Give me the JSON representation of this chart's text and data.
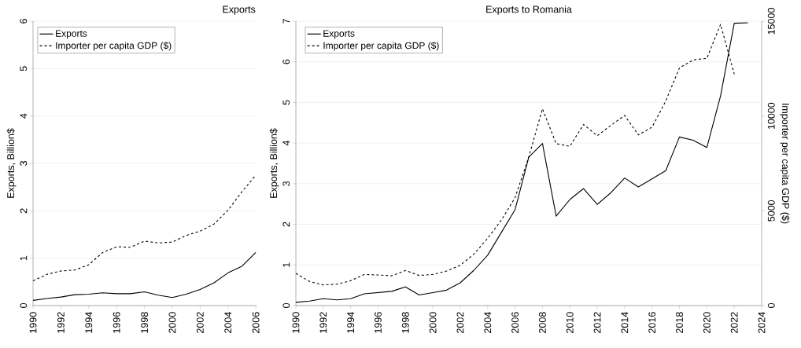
{
  "chart_data": [
    {
      "type": "line",
      "title": "Exports",
      "ylabel": "Exports, Billion$",
      "x": [
        1990,
        1991,
        1992,
        1993,
        1994,
        1995,
        1996,
        1997,
        1998,
        1999,
        2000,
        2001,
        2002,
        2003,
        2004,
        2005,
        2006
      ],
      "series": [
        {
          "name": "Exports",
          "color": "#000000",
          "line_style": "solid",
          "values": [
            0.11,
            0.15,
            0.18,
            0.23,
            0.24,
            0.27,
            0.25,
            0.25,
            0.29,
            0.22,
            0.17,
            0.24,
            0.34,
            0.48,
            0.69,
            0.83,
            1.12
          ]
        },
        {
          "name": "Importer per capita GDP ($)",
          "color": "#000000",
          "line_style": "dashed",
          "values": [
            0.52,
            0.66,
            0.73,
            0.75,
            0.86,
            1.12,
            1.24,
            1.23,
            1.36,
            1.32,
            1.34,
            1.48,
            1.57,
            1.72,
            2.01,
            2.4,
            2.75
          ]
        }
      ],
      "xlim": [
        1990,
        2006.05
      ],
      "ylim": [
        0,
        6
      ],
      "xticks": [
        1990,
        1992,
        1994,
        1996,
        1998,
        2000,
        2002,
        2004,
        2006
      ],
      "yticks": [
        0,
        1,
        2,
        3,
        4,
        5,
        6
      ],
      "grid": "y",
      "legend": "top left"
    },
    {
      "type": "line",
      "title": "Exports to Romania",
      "ylabel": "Exports, Billion$",
      "y2label": "Importer per capita GDP ($)",
      "series": [
        {
          "name": "Exports",
          "color": "#000000",
          "line_style": "solid",
          "x": [
            1990,
            1991,
            1992,
            1993,
            1994,
            1995,
            1996,
            1997,
            1998,
            1999,
            2000,
            2001,
            2002,
            2003,
            2004,
            2005,
            2006,
            2007,
            2008,
            2009,
            2010,
            2011,
            2012,
            2013,
            2014,
            2015,
            2016,
            2017,
            2018,
            2019,
            2020,
            2021,
            2022,
            2023
          ],
          "values": [
            0.08,
            0.11,
            0.17,
            0.14,
            0.17,
            0.29,
            0.32,
            0.35,
            0.46,
            0.26,
            0.32,
            0.38,
            0.56,
            0.87,
            1.24,
            1.8,
            2.36,
            3.65,
            3.99,
            2.2,
            2.61,
            2.88,
            2.49,
            2.78,
            3.14,
            2.92,
            3.12,
            3.32,
            4.15,
            4.07,
            3.89,
            5.16,
            6.95,
            6.96
          ]
        },
        {
          "name": "Importer per capita GDP ($)",
          "color": "#000000",
          "line_style": "dashed",
          "axis": "y2",
          "x": [
            1990,
            1991,
            1992,
            1993,
            1994,
            1995,
            1996,
            1997,
            1998,
            1999,
            2000,
            2001,
            2002,
            2003,
            2004,
            2005,
            2006,
            2007,
            2008,
            2009,
            2010,
            2011,
            2012,
            2013,
            2014,
            2015,
            2016,
            2017,
            2018,
            2019,
            2020,
            2021,
            2022
          ],
          "values": [
            1700,
            1270,
            1090,
            1130,
            1310,
            1640,
            1615,
            1570,
            1850,
            1590,
            1640,
            1820,
            2125,
            2720,
            3550,
            4510,
            5690,
            7830,
            10380,
            8540,
            8400,
            9550,
            8960,
            9510,
            10030,
            9000,
            9410,
            10790,
            12540,
            12960,
            13040,
            14830,
            12210
          ]
        }
      ],
      "xlim": [
        1990,
        2024
      ],
      "ylim": [
        0,
        7
      ],
      "y2lim": [
        0,
        15000
      ],
      "xticks": [
        1990,
        1992,
        1994,
        1996,
        1998,
        2000,
        2002,
        2004,
        2006,
        2008,
        2010,
        2012,
        2014,
        2016,
        2018,
        2020,
        2022,
        2024
      ],
      "yticks": [
        0,
        1,
        2,
        3,
        4,
        5,
        6,
        7
      ],
      "y2ticks": [
        0,
        5000,
        10000,
        15000
      ],
      "grid": "y",
      "legend": "top left"
    }
  ]
}
